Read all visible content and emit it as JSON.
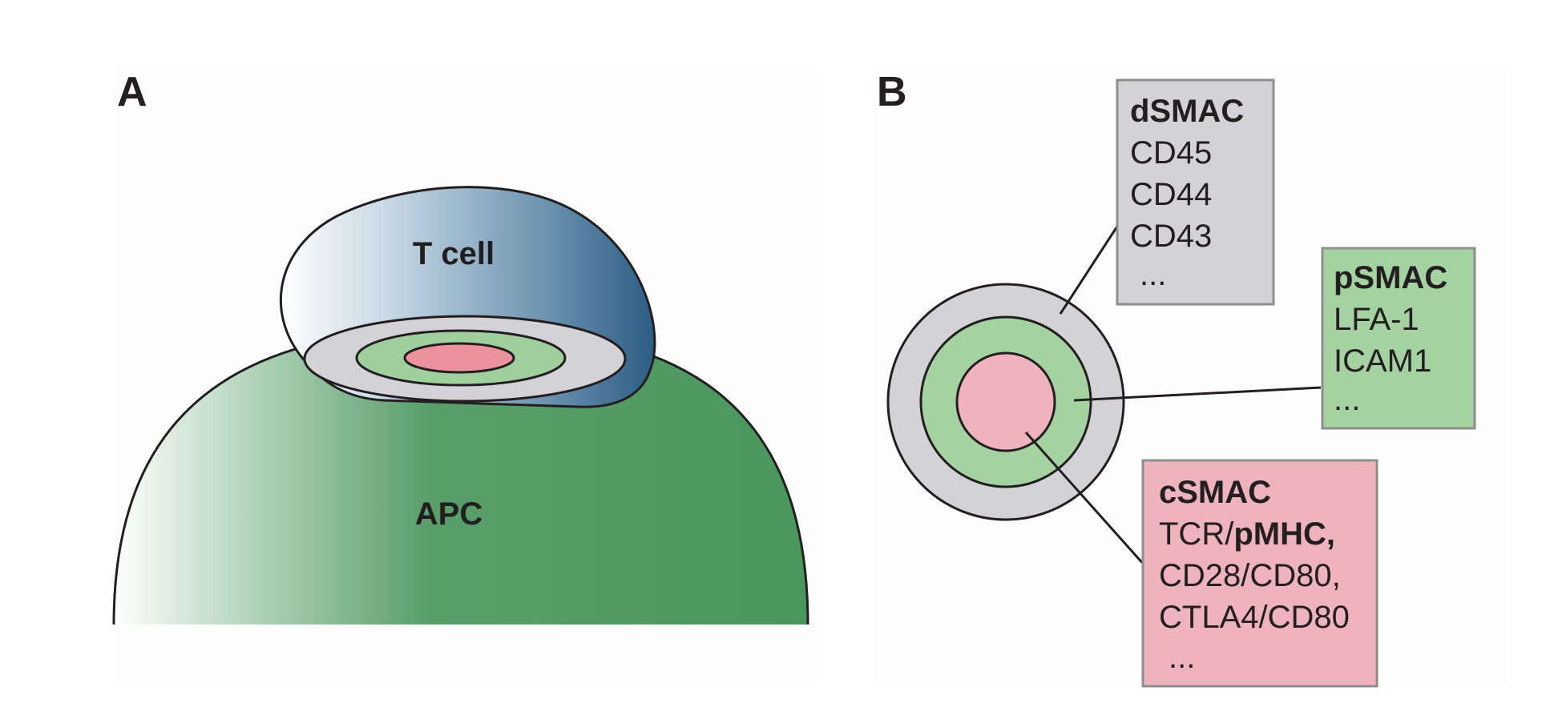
{
  "panel_a": {
    "letter": "A",
    "t_cell_label": "T cell",
    "apc_label": "APC"
  },
  "panel_b": {
    "letter": "B",
    "dsmac": {
      "title": "dSMAC",
      "items": [
        "CD45",
        "CD44",
        "CD43",
        "..."
      ]
    },
    "psmac": {
      "title": "pSMAC",
      "items": [
        "LFA-1",
        "ICAM1",
        "..."
      ]
    },
    "csmac": {
      "title": "cSMAC",
      "item_1_prefix": "TCR/",
      "item_1_bold": "pMHC,",
      "items": [
        "CD28/CD80,",
        "CTLA4/CD80",
        "..."
      ]
    }
  },
  "colors": {
    "dsmac_gray": "#d3d3d5",
    "psmac_green": "#9fcf9c",
    "csmac_pink": "#ecacb6",
    "apc_green": "#4e9a60",
    "t_cell_blue": "#2e5f86",
    "outline": "#231f20"
  }
}
